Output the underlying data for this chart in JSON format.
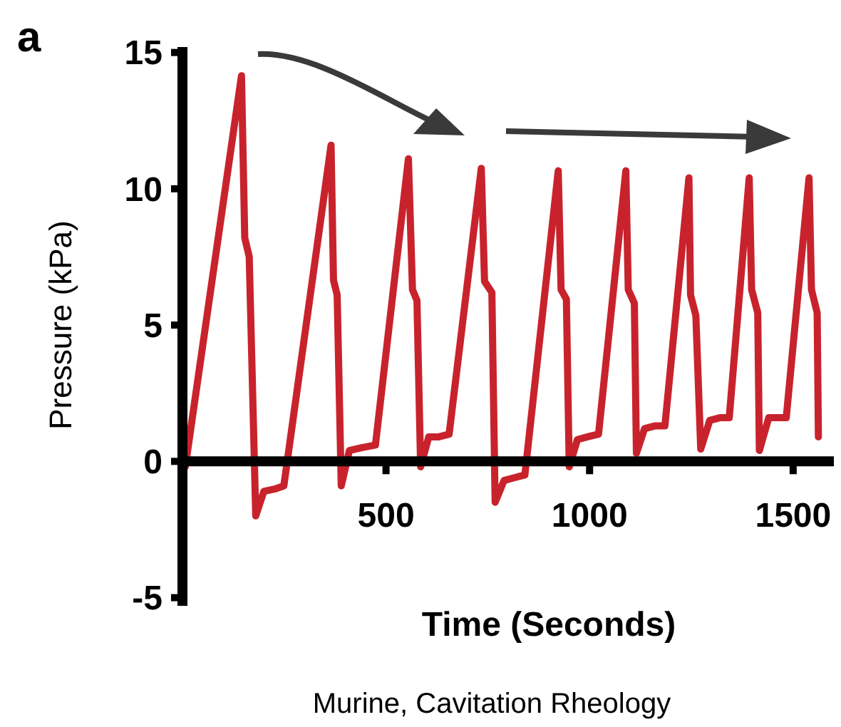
{
  "chart_data": {
    "type": "line",
    "xlabel": "Time (Seconds)",
    "ylabel": "Pressure (kPa)",
    "annotations": [
      "a",
      "Murine, Cavitation Rheology"
    ],
    "xlim": [
      0,
      1600
    ],
    "ylim": [
      -5.3,
      15.2
    ],
    "xticks": [
      {
        "value": 0,
        "label": null
      },
      500,
      1000,
      1500
    ],
    "yticks": [
      -5,
      0,
      5,
      10,
      15
    ],
    "grid": false,
    "marker": "none",
    "line_style": "solid",
    "series": [
      {
        "color": "#c8232c",
        "x": [
          7,
          145,
          153,
          164,
          180,
          200,
          230,
          249,
          365,
          371,
          380,
          390,
          410,
          440,
          474,
          555,
          565,
          576,
          585,
          605,
          630,
          655,
          734,
          742,
          760,
          768,
          790,
          815,
          841,
          923,
          930,
          943,
          950,
          970,
          995,
          1022,
          1089,
          1095,
          1110,
          1115,
          1135,
          1160,
          1185,
          1244,
          1248,
          1261,
          1273,
          1295,
          1320,
          1343,
          1392,
          1398,
          1413,
          1417,
          1440,
          1460,
          1483,
          1539,
          1545,
          1559,
          1562
        ],
        "values": [
          -0.2,
          14.15,
          8.2,
          7.5,
          -2.0,
          -1.1,
          -1.0,
          -0.9,
          11.6,
          6.65,
          6.1,
          -0.9,
          0.4,
          0.5,
          0.6,
          11.1,
          6.3,
          5.9,
          -0.2,
          0.9,
          0.9,
          1.0,
          10.75,
          6.6,
          6.2,
          -1.5,
          -0.7,
          -0.6,
          -0.5,
          10.66,
          6.3,
          5.95,
          -0.2,
          0.8,
          0.9,
          1.0,
          10.66,
          6.3,
          5.8,
          0.3,
          1.2,
          1.3,
          1.3,
          10.4,
          6.1,
          5.35,
          0.45,
          1.5,
          1.6,
          1.6,
          10.4,
          6.3,
          5.45,
          0.4,
          1.6,
          1.6,
          1.6,
          10.4,
          6.3,
          5.45,
          0.9
        ]
      }
    ]
  }
}
